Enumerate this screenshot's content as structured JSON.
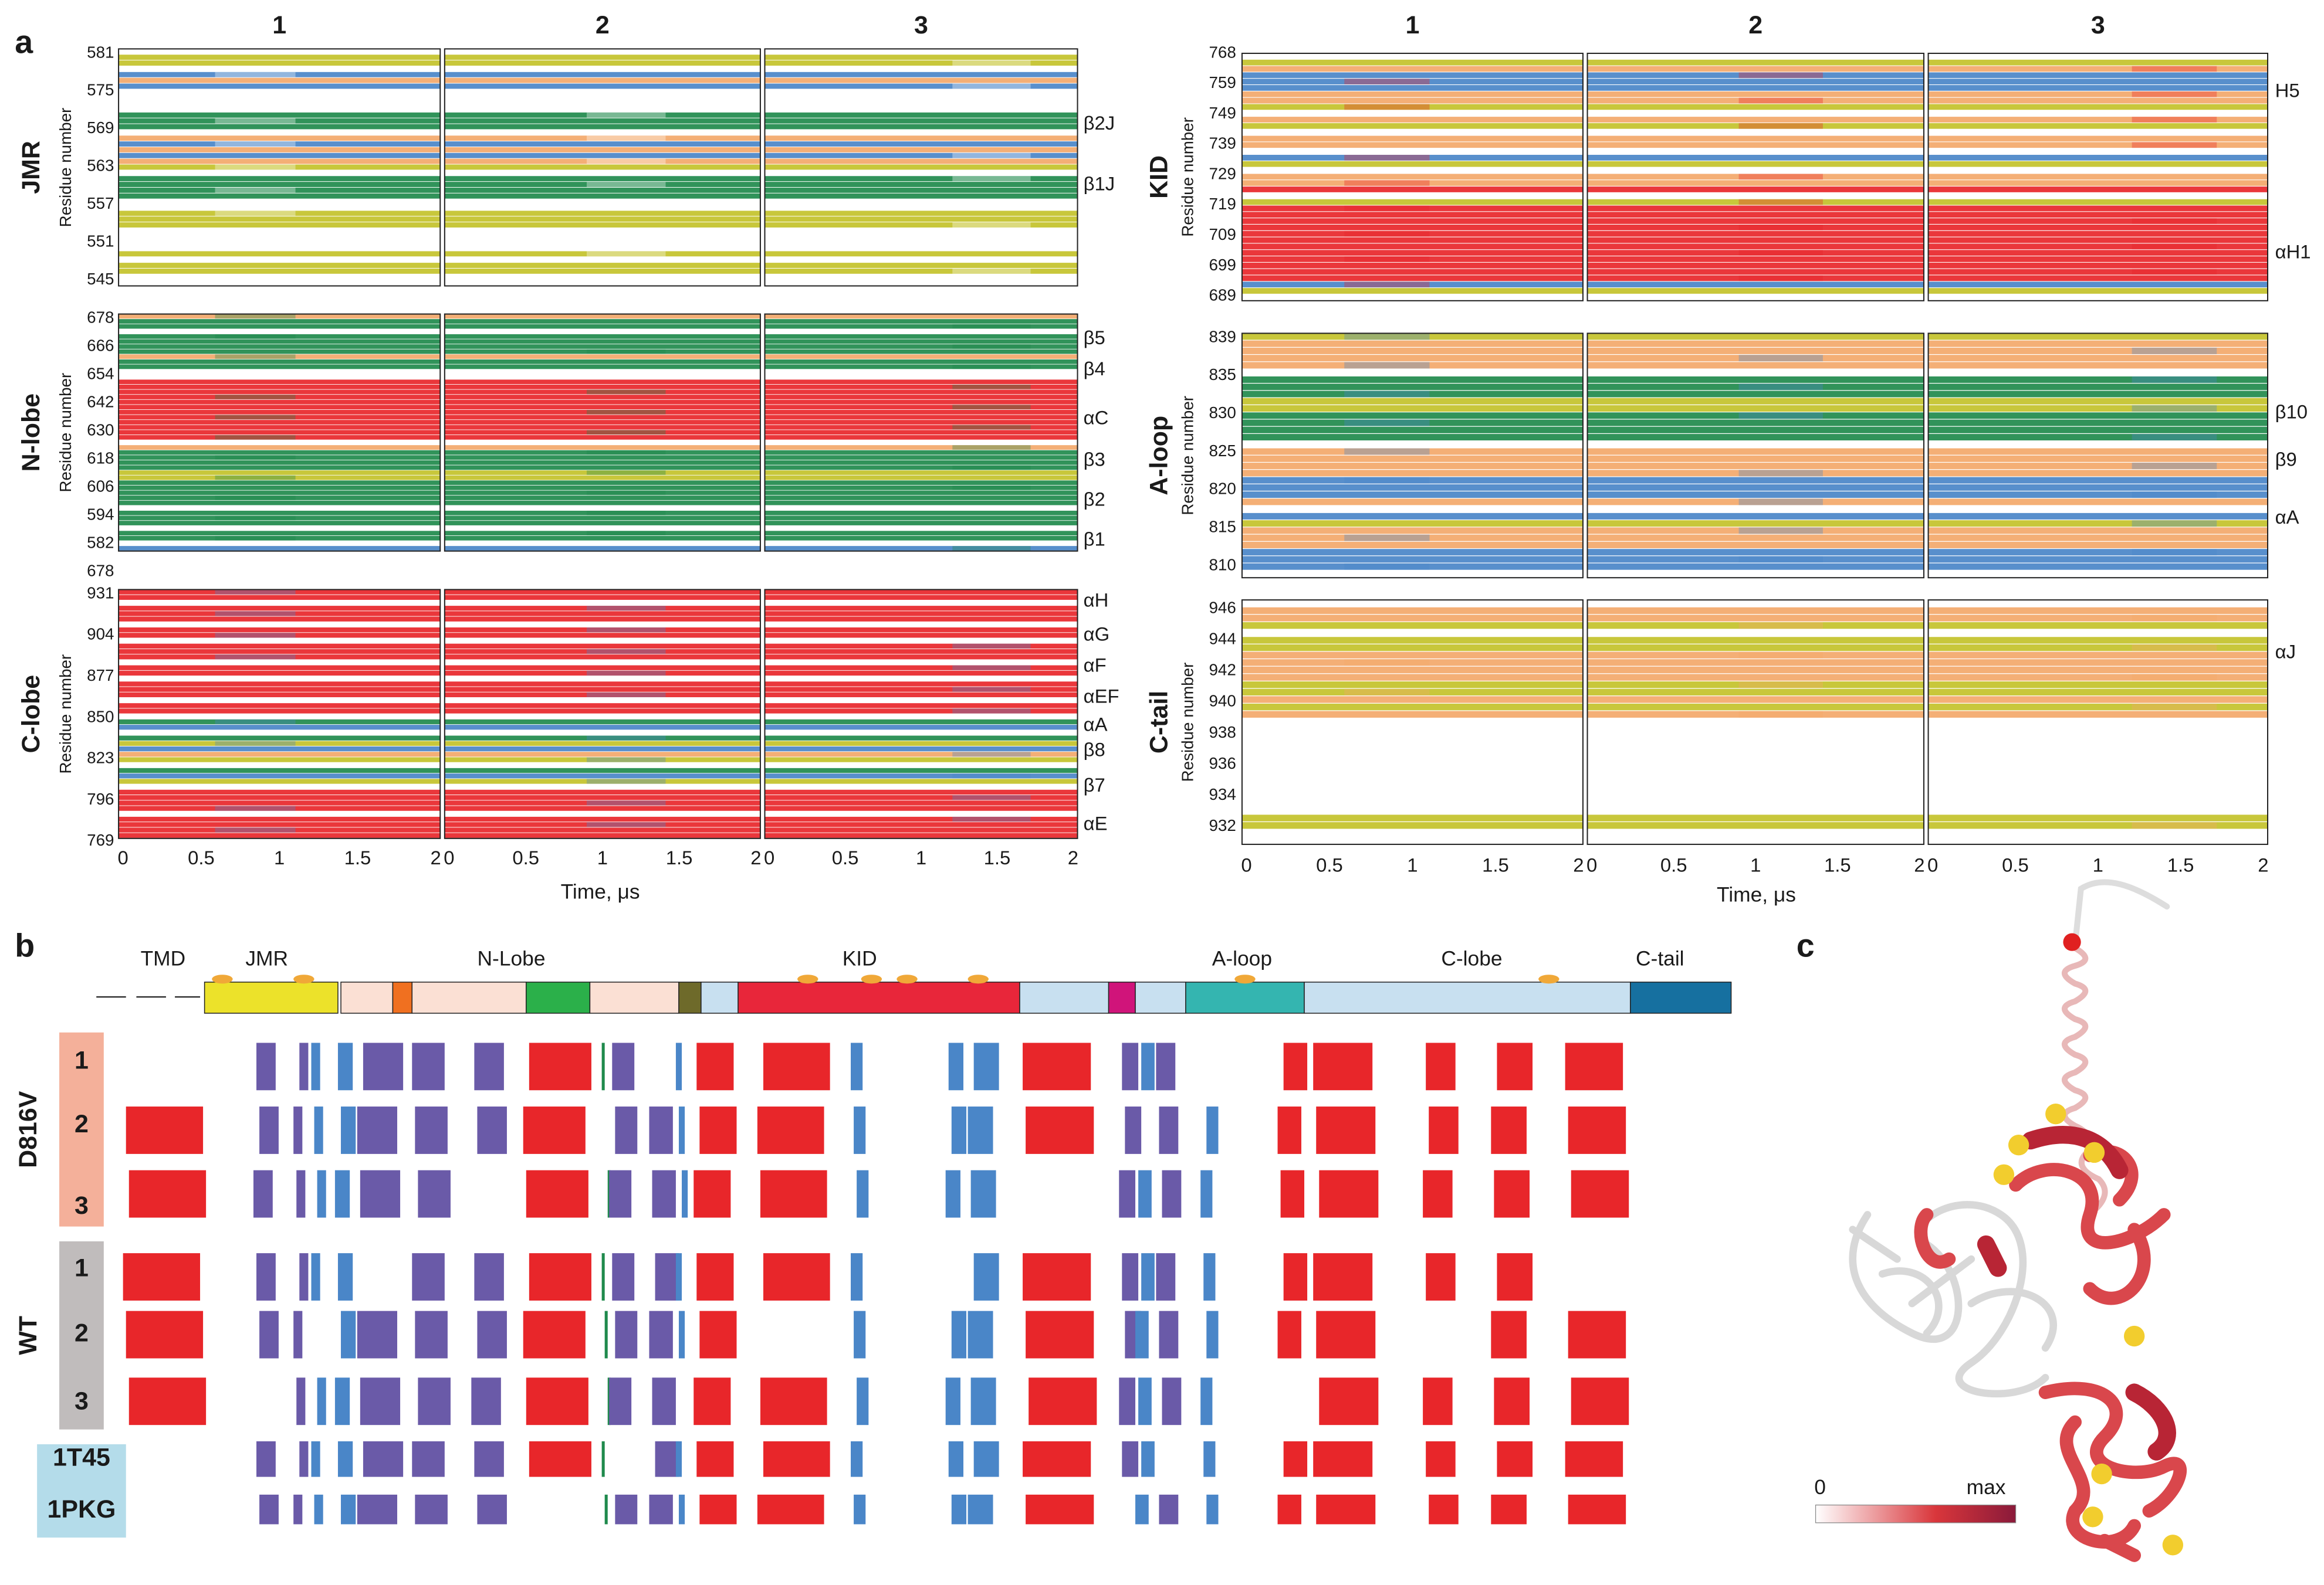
{
  "panel_a": {
    "label": "a",
    "y_axis_label": "Residue number",
    "time_label": "Time, μs",
    "time_ticks": [
      "0",
      "0.5",
      "1",
      "1.5",
      "2"
    ],
    "left": {
      "column_headers": [
        "1",
        "2",
        "3"
      ],
      "rows": [
        {
          "name": "JMR",
          "residue_ticks": [
            "581",
            "575",
            "569",
            "563",
            "557",
            "551",
            "545"
          ],
          "structure_labels": [
            "β2J",
            "β1J"
          ]
        },
        {
          "name": "N-lobe",
          "residue_ticks": [
            "678",
            "666",
            "654",
            "642",
            "630",
            "618",
            "606",
            "594",
            "582",
            "678"
          ],
          "structure_labels": [
            "β5",
            "β4",
            "αC",
            "β3",
            "β2",
            "β1"
          ]
        },
        {
          "name": "C-lobe",
          "residue_ticks": [
            "931",
            "904",
            "877",
            "850",
            "823",
            "796",
            "769"
          ],
          "structure_labels": [
            "αH",
            "αG",
            "αF",
            "αEF",
            "αA",
            "β8",
            "β7",
            "αE"
          ]
        }
      ]
    },
    "right": {
      "column_headers": [
        "1",
        "2",
        "3"
      ],
      "rows": [
        {
          "name": "KID",
          "residue_ticks": [
            "768",
            "759",
            "749",
            "739",
            "729",
            "719",
            "709",
            "699",
            "689"
          ],
          "structure_labels": [
            "H5",
            "αH1"
          ]
        },
        {
          "name": "A-loop",
          "residue_ticks": [
            "839",
            "835",
            "830",
            "825",
            "820",
            "815",
            "810"
          ],
          "structure_labels": [
            "β10",
            "β9",
            "αA"
          ]
        },
        {
          "name": "C-tail",
          "residue_ticks": [
            "946",
            "944",
            "942",
            "940",
            "938",
            "936",
            "934",
            "932"
          ],
          "structure_labels": [
            "αJ"
          ]
        }
      ]
    }
  },
  "panel_b": {
    "label": "b",
    "domains": [
      "TMD",
      "JMR",
      "N-Lobe",
      "KID",
      "A-loop",
      "C-lobe",
      "C-tail"
    ],
    "groups": [
      {
        "name": "D816V",
        "runs": [
          "1",
          "2",
          "3"
        ]
      },
      {
        "name": "WT",
        "runs": [
          "1",
          "2",
          "3"
        ]
      }
    ],
    "structures": [
      "1T45",
      "1PKG"
    ]
  },
  "panel_c": {
    "label": "c",
    "scale": [
      "0",
      "max"
    ]
  }
}
